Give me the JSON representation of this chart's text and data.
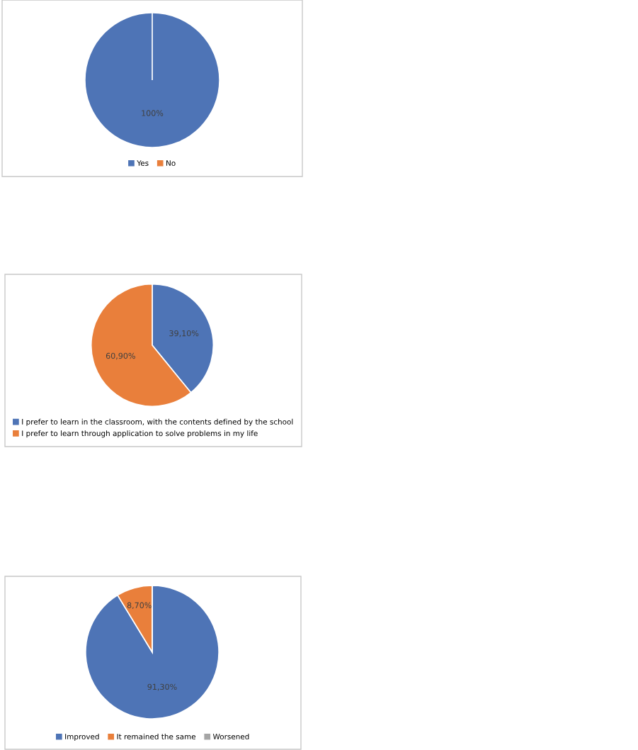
{
  "chart_data": [
    {
      "type": "pie",
      "categories": [
        "Yes",
        "No"
      ],
      "values": [
        100,
        0
      ],
      "colors": [
        "#4e74b6",
        "#e97f3b"
      ],
      "value_labels": [
        "100%",
        null
      ],
      "legend": "bottom"
    },
    {
      "type": "pie",
      "categories": [
        "I prefer to learn in the classroom, with the contents defined by the school",
        "I prefer to learn through application to solve problems in my life"
      ],
      "values": [
        39.1,
        60.9
      ],
      "colors": [
        "#4e74b6",
        "#e97f3b"
      ],
      "value_labels": [
        "39,10%",
        "60,90%"
      ],
      "legend": "bottom"
    },
    {
      "type": "pie",
      "categories": [
        "Improved",
        "It remained the same",
        "Worsened"
      ],
      "values": [
        91.3,
        8.7,
        0
      ],
      "colors": [
        "#4e74b6",
        "#e97f3b",
        "#a5a5a5"
      ],
      "value_labels": [
        "91,30%",
        "8,70%",
        null
      ],
      "legend": "bottom"
    }
  ]
}
